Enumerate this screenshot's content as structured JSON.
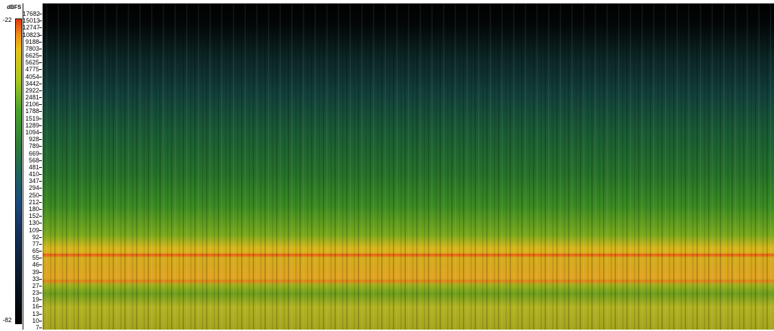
{
  "scale": {
    "unit": "dBFS",
    "max": "-22",
    "min": "-82"
  },
  "frequency_labels": [
    "17682",
    "15013",
    "12747",
    "10823",
    "9188",
    "7803",
    "6625",
    "5625",
    "4775",
    "4054",
    "3442",
    "2922",
    "2481",
    "2106",
    "1788",
    "1519",
    "1289",
    "1094",
    "928",
    "789",
    "669",
    "568",
    "481",
    "410",
    "347",
    "294",
    "250",
    "212",
    "180",
    "152",
    "130",
    "109",
    "92",
    "77",
    "65",
    "55",
    "46",
    "39",
    "33",
    "27",
    "23",
    "19",
    "16",
    "13",
    "10",
    "7"
  ]
}
